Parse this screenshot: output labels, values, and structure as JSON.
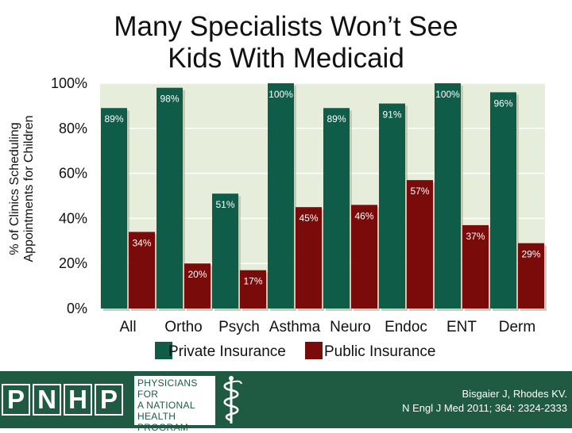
{
  "title": {
    "line1": "Many Specialists Won’t See",
    "line2": "Kids With Medicaid"
  },
  "ylabel": {
    "line1": "% of Clinics Scheduling",
    "line2": "Appointments for Children"
  },
  "chart_data": {
    "type": "bar",
    "categories": [
      "All",
      "Ortho",
      "Psych",
      "Asthma",
      "Neuro",
      "Endoc",
      "ENT",
      "Derm"
    ],
    "series": [
      {
        "name": "Private Insurance",
        "color": "#0f5c49",
        "values": [
          89,
          98,
          51,
          100,
          89,
          91,
          100,
          96
        ],
        "labels": [
          "89%",
          "98%",
          "51%",
          "100%",
          "89%",
          "91%",
          "100%",
          "96%"
        ]
      },
      {
        "name": "Public Insurance",
        "color": "#7a0b0b",
        "values": [
          34,
          20,
          17,
          45,
          46,
          57,
          37,
          29
        ],
        "labels": [
          "34%",
          "20%",
          "17%",
          "45%",
          "46%",
          "57%",
          "37%",
          "29%"
        ]
      }
    ],
    "ylim": [
      0,
      100
    ],
    "yticks": [
      0,
      20,
      40,
      60,
      80,
      100
    ],
    "ytick_labels": [
      "0%",
      "20%",
      "40%",
      "60%",
      "80%",
      "100%"
    ],
    "xlabel": "",
    "ylabel": "% of Clinics Scheduling Appointments for Children",
    "legend_position": "bottom",
    "grid": true,
    "plot_background": "#e6edda"
  },
  "footer": {
    "logo_letters": [
      "P",
      "N",
      "H",
      "P"
    ],
    "org_lines": [
      "PHYSICIANS FOR",
      "A NATIONAL",
      "HEALTH",
      "PROGRAM"
    ],
    "citation_line1": "Bisgaier J, Rhodes KV.",
    "citation_line2": "N Engl J Med 2011; 364: 2324-2333"
  }
}
